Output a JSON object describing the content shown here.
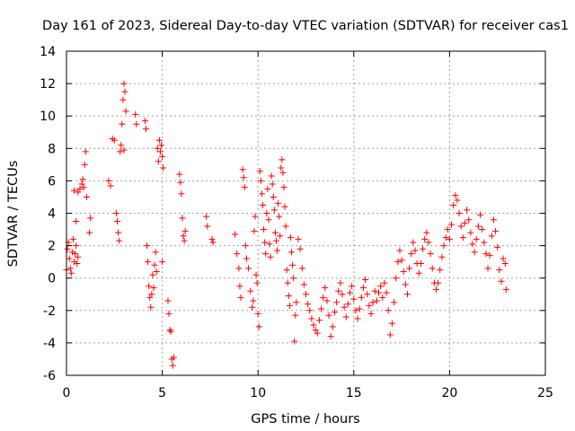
{
  "chart_data": {
    "type": "scatter",
    "title": "Day 161 of 2023, Sidereal Day-to-day VTEC variation (SDTVAR) for receiver cas1",
    "xlabel": "GPS time / hours",
    "ylabel": "SDTVAR / TECUs",
    "xlim": [
      0,
      25
    ],
    "ylim": [
      -6,
      14
    ],
    "xticks": [
      0,
      5,
      10,
      15,
      20,
      25
    ],
    "yticks": [
      -6,
      -4,
      -2,
      0,
      2,
      4,
      6,
      8,
      10,
      12,
      14
    ],
    "grid": true,
    "marker": "+",
    "color": "#ff0000",
    "series": [
      {
        "name": "SDTVAR",
        "points": [
          [
            0.0,
            0.5
          ],
          [
            0.05,
            1.8
          ],
          [
            0.1,
            2.2
          ],
          [
            0.15,
            1.2
          ],
          [
            0.2,
            0.6
          ],
          [
            0.25,
            0.3
          ],
          [
            0.3,
            1.6
          ],
          [
            0.35,
            2.4
          ],
          [
            0.4,
            1.0
          ],
          [
            0.45,
            1.5
          ],
          [
            0.5,
            2.0
          ],
          [
            0.55,
            0.9
          ],
          [
            0.6,
            1.3
          ],
          [
            0.4,
            5.4
          ],
          [
            0.6,
            5.3
          ],
          [
            0.7,
            5.5
          ],
          [
            0.8,
            5.8
          ],
          [
            0.85,
            6.1
          ],
          [
            0.9,
            5.6
          ],
          [
            0.95,
            7.0
          ],
          [
            1.0,
            7.8
          ],
          [
            1.05,
            5.0
          ],
          [
            0.5,
            3.5
          ],
          [
            1.2,
            2.8
          ],
          [
            1.25,
            3.7
          ],
          [
            2.2,
            6.0
          ],
          [
            2.3,
            5.7
          ],
          [
            2.4,
            8.6
          ],
          [
            2.5,
            8.5
          ],
          [
            2.6,
            4.0
          ],
          [
            2.65,
            3.5
          ],
          [
            2.7,
            2.8
          ],
          [
            2.75,
            2.3
          ],
          [
            2.8,
            7.8
          ],
          [
            2.85,
            8.2
          ],
          [
            2.9,
            9.5
          ],
          [
            2.95,
            11.0
          ],
          [
            3.0,
            12.0
          ],
          [
            3.05,
            11.5
          ],
          [
            3.1,
            10.3
          ],
          [
            3.0,
            7.9
          ],
          [
            3.6,
            10.1
          ],
          [
            3.65,
            9.5
          ],
          [
            4.1,
            9.7
          ],
          [
            4.15,
            9.2
          ],
          [
            4.2,
            2.0
          ],
          [
            4.25,
            1.0
          ],
          [
            4.3,
            -0.5
          ],
          [
            4.35,
            -1.2
          ],
          [
            4.4,
            -1.8
          ],
          [
            4.45,
            -1.0
          ],
          [
            4.5,
            0.2
          ],
          [
            4.55,
            -0.6
          ],
          [
            4.6,
            0.8
          ],
          [
            4.65,
            1.6
          ],
          [
            4.7,
            0.4
          ],
          [
            4.75,
            8.0
          ],
          [
            4.8,
            7.2
          ],
          [
            4.85,
            8.5
          ],
          [
            4.9,
            7.8
          ],
          [
            4.95,
            8.2
          ],
          [
            5.0,
            7.5
          ],
          [
            5.05,
            6.8
          ],
          [
            5.0,
            1.0
          ],
          [
            5.3,
            -1.4
          ],
          [
            5.35,
            -2.2
          ],
          [
            5.4,
            -3.2
          ],
          [
            5.45,
            -3.3
          ],
          [
            5.5,
            -5.0
          ],
          [
            5.55,
            -5.4
          ],
          [
            5.6,
            -4.9
          ],
          [
            5.9,
            6.4
          ],
          [
            5.95,
            5.9
          ],
          [
            6.0,
            5.2
          ],
          [
            6.05,
            3.7
          ],
          [
            6.1,
            2.6
          ],
          [
            6.15,
            2.3
          ],
          [
            6.2,
            2.9
          ],
          [
            7.3,
            3.8
          ],
          [
            7.35,
            3.2
          ],
          [
            7.6,
            2.4
          ],
          [
            7.65,
            2.2
          ],
          [
            8.8,
            2.7
          ],
          [
            8.9,
            1.5
          ],
          [
            9.0,
            0.6
          ],
          [
            9.05,
            -0.5
          ],
          [
            9.1,
            -1.2
          ],
          [
            9.2,
            6.7
          ],
          [
            9.25,
            6.2
          ],
          [
            9.3,
            5.6
          ],
          [
            9.35,
            2.0
          ],
          [
            9.4,
            1.2
          ],
          [
            9.5,
            0.6
          ],
          [
            9.6,
            -0.8
          ],
          [
            9.7,
            -1.8
          ],
          [
            9.75,
            -1.4
          ],
          [
            9.8,
            2.9
          ],
          [
            9.85,
            3.8
          ],
          [
            9.9,
            0.2
          ],
          [
            9.95,
            -0.3
          ],
          [
            10.0,
            -2.2
          ],
          [
            10.05,
            -3.0
          ],
          [
            10.1,
            6.6
          ],
          [
            10.15,
            6.0
          ],
          [
            10.2,
            5.2
          ],
          [
            10.25,
            4.5
          ],
          [
            10.3,
            3.0
          ],
          [
            10.35,
            2.2
          ],
          [
            10.4,
            1.5
          ],
          [
            10.45,
            4.0
          ],
          [
            10.5,
            5.5
          ],
          [
            10.55,
            3.6
          ],
          [
            10.6,
            2.1
          ],
          [
            10.65,
            1.3
          ],
          [
            10.7,
            6.3
          ],
          [
            10.75,
            5.8
          ],
          [
            10.8,
            5.0
          ],
          [
            10.85,
            4.2
          ],
          [
            10.9,
            2.8
          ],
          [
            10.95,
            2.3
          ],
          [
            11.0,
            1.7
          ],
          [
            11.05,
            4.6
          ],
          [
            11.1,
            3.8
          ],
          [
            11.15,
            2.6
          ],
          [
            11.2,
            6.8
          ],
          [
            11.25,
            7.3
          ],
          [
            11.3,
            6.5
          ],
          [
            11.35,
            5.6
          ],
          [
            11.4,
            4.4
          ],
          [
            11.45,
            3.2
          ],
          [
            11.5,
            0.5
          ],
          [
            11.55,
            -0.3
          ],
          [
            11.6,
            -1.1
          ],
          [
            11.65,
            -1.7
          ],
          [
            11.7,
            2.5
          ],
          [
            11.75,
            1.6
          ],
          [
            11.8,
            0.8
          ],
          [
            11.85,
            0.0
          ],
          [
            11.9,
            -3.9
          ],
          [
            11.95,
            -2.3
          ],
          [
            12.0,
            -1.5
          ],
          [
            12.1,
            2.4
          ],
          [
            12.2,
            1.8
          ],
          [
            12.3,
            0.6
          ],
          [
            12.4,
            -0.4
          ],
          [
            12.5,
            -1.0
          ],
          [
            12.6,
            -1.6
          ],
          [
            12.7,
            -2.0
          ],
          [
            12.8,
            -2.5
          ],
          [
            12.9,
            -2.9
          ],
          [
            13.0,
            -3.2
          ],
          [
            13.1,
            -3.4
          ],
          [
            13.2,
            -2.6
          ],
          [
            13.3,
            -1.9
          ],
          [
            13.4,
            -1.2
          ],
          [
            13.5,
            -0.6
          ],
          [
            13.6,
            -1.4
          ],
          [
            13.7,
            -2.3
          ],
          [
            13.8,
            -3.6
          ],
          [
            13.9,
            -3.0
          ],
          [
            14.0,
            -2.1
          ],
          [
            14.1,
            -1.5
          ],
          [
            14.2,
            -0.8
          ],
          [
            14.3,
            -0.3
          ],
          [
            14.4,
            -1.0
          ],
          [
            14.5,
            -1.8
          ],
          [
            14.6,
            -2.4
          ],
          [
            14.7,
            -1.6
          ],
          [
            14.8,
            -0.9
          ],
          [
            14.9,
            -0.5
          ],
          [
            15.0,
            -1.3
          ],
          [
            15.1,
            -2.0
          ],
          [
            15.2,
            -2.5
          ],
          [
            15.3,
            -1.9
          ],
          [
            15.4,
            -1.2
          ],
          [
            15.5,
            -0.6
          ],
          [
            15.6,
            -0.1
          ],
          [
            15.7,
            -1.0
          ],
          [
            15.8,
            -1.7
          ],
          [
            15.9,
            -2.2
          ],
          [
            16.0,
            -1.5
          ],
          [
            16.1,
            -0.8
          ],
          [
            16.2,
            -1.4
          ],
          [
            16.3,
            -0.9
          ],
          [
            16.4,
            -0.5
          ],
          [
            16.5,
            -1.2
          ],
          [
            16.6,
            -0.3
          ],
          [
            16.7,
            -0.9
          ],
          [
            16.8,
            -2.0
          ],
          [
            16.9,
            -3.5
          ],
          [
            17.0,
            -2.8
          ],
          [
            17.1,
            -1.5
          ],
          [
            17.2,
            0.0
          ],
          [
            17.3,
            1.0
          ],
          [
            17.4,
            1.7
          ],
          [
            17.5,
            1.1
          ],
          [
            17.6,
            0.4
          ],
          [
            17.7,
            -0.4
          ],
          [
            17.8,
            -1.0
          ],
          [
            17.9,
            0.6
          ],
          [
            18.0,
            1.5
          ],
          [
            18.1,
            2.2
          ],
          [
            18.2,
            1.7
          ],
          [
            18.3,
            0.9
          ],
          [
            18.4,
            0.3
          ],
          [
            18.5,
            0.9
          ],
          [
            18.6,
            1.8
          ],
          [
            18.7,
            2.4
          ],
          [
            18.8,
            2.8
          ],
          [
            18.9,
            2.2
          ],
          [
            19.0,
            1.5
          ],
          [
            19.1,
            0.6
          ],
          [
            19.2,
            -0.3
          ],
          [
            19.3,
            -0.7
          ],
          [
            19.4,
            -0.3
          ],
          [
            19.5,
            0.5
          ],
          [
            19.6,
            1.3
          ],
          [
            19.7,
            2.0
          ],
          [
            19.8,
            2.5
          ],
          [
            19.9,
            3.0
          ],
          [
            20.0,
            2.4
          ],
          [
            20.1,
            3.3
          ],
          [
            20.2,
            4.5
          ],
          [
            20.3,
            5.1
          ],
          [
            20.4,
            4.8
          ],
          [
            20.5,
            4.0
          ],
          [
            20.6,
            3.2
          ],
          [
            20.7,
            2.5
          ],
          [
            20.8,
            3.4
          ],
          [
            20.9,
            4.2
          ],
          [
            21.0,
            3.6
          ],
          [
            21.1,
            2.8
          ],
          [
            21.2,
            2.1
          ],
          [
            21.3,
            1.6
          ],
          [
            21.4,
            2.4
          ],
          [
            21.5,
            3.2
          ],
          [
            21.6,
            3.9
          ],
          [
            21.7,
            3.0
          ],
          [
            21.8,
            2.2
          ],
          [
            21.9,
            1.5
          ],
          [
            22.0,
            0.6
          ],
          [
            22.1,
            1.4
          ],
          [
            22.2,
            2.6
          ],
          [
            22.3,
            3.6
          ],
          [
            22.4,
            2.9
          ],
          [
            22.5,
            1.9
          ],
          [
            22.6,
            0.5
          ],
          [
            22.7,
            -0.2
          ],
          [
            22.8,
            1.2
          ],
          [
            22.9,
            0.9
          ],
          [
            22.95,
            -0.7
          ]
        ]
      }
    ]
  }
}
